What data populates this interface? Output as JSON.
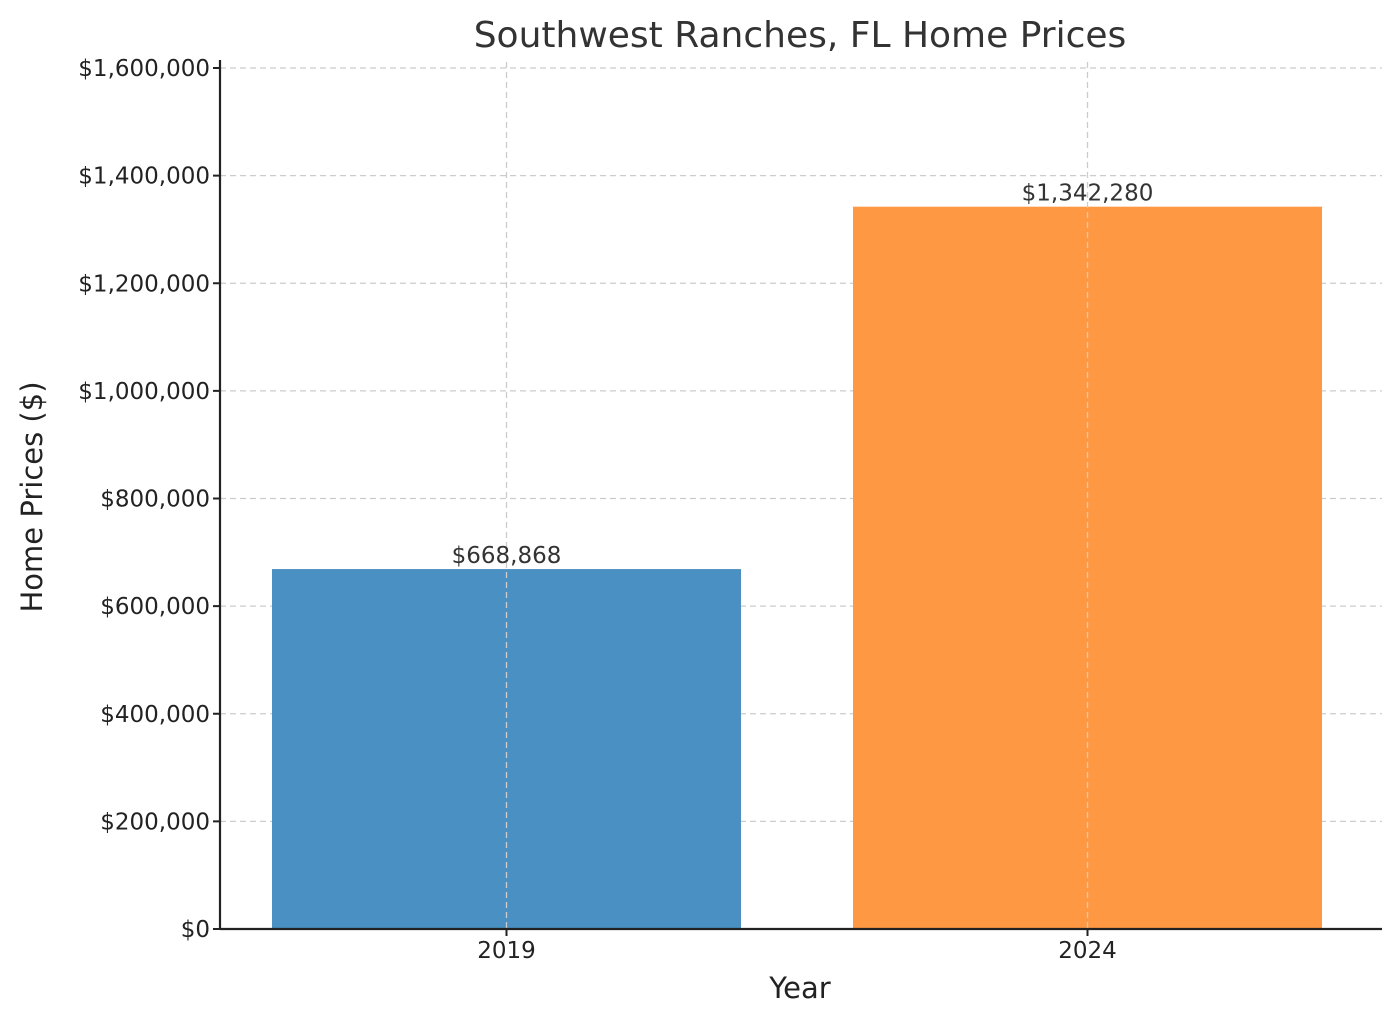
{
  "chart_data": {
    "type": "bar",
    "title": "Southwest Ranches, FL Home Prices",
    "xlabel": "Year",
    "ylabel": "Home Prices ($)",
    "categories": [
      "2019",
      "2024"
    ],
    "values": [
      668868,
      1342280
    ],
    "data_labels": [
      "$668,868",
      "$1,342,280"
    ],
    "bar_colors": [
      "#4a90c2",
      "#ff9842"
    ],
    "ylim": [
      0,
      1600000
    ],
    "yticks": [
      0,
      200000,
      400000,
      600000,
      800000,
      1000000,
      1200000,
      1400000,
      1600000
    ],
    "ytick_labels": [
      "$0",
      "$200,000",
      "$400,000",
      "$600,000",
      "$800,000",
      "$1,000,000",
      "$1,200,000",
      "$1,400,000",
      "$1,600,000"
    ],
    "grid": true,
    "legend": "none"
  }
}
